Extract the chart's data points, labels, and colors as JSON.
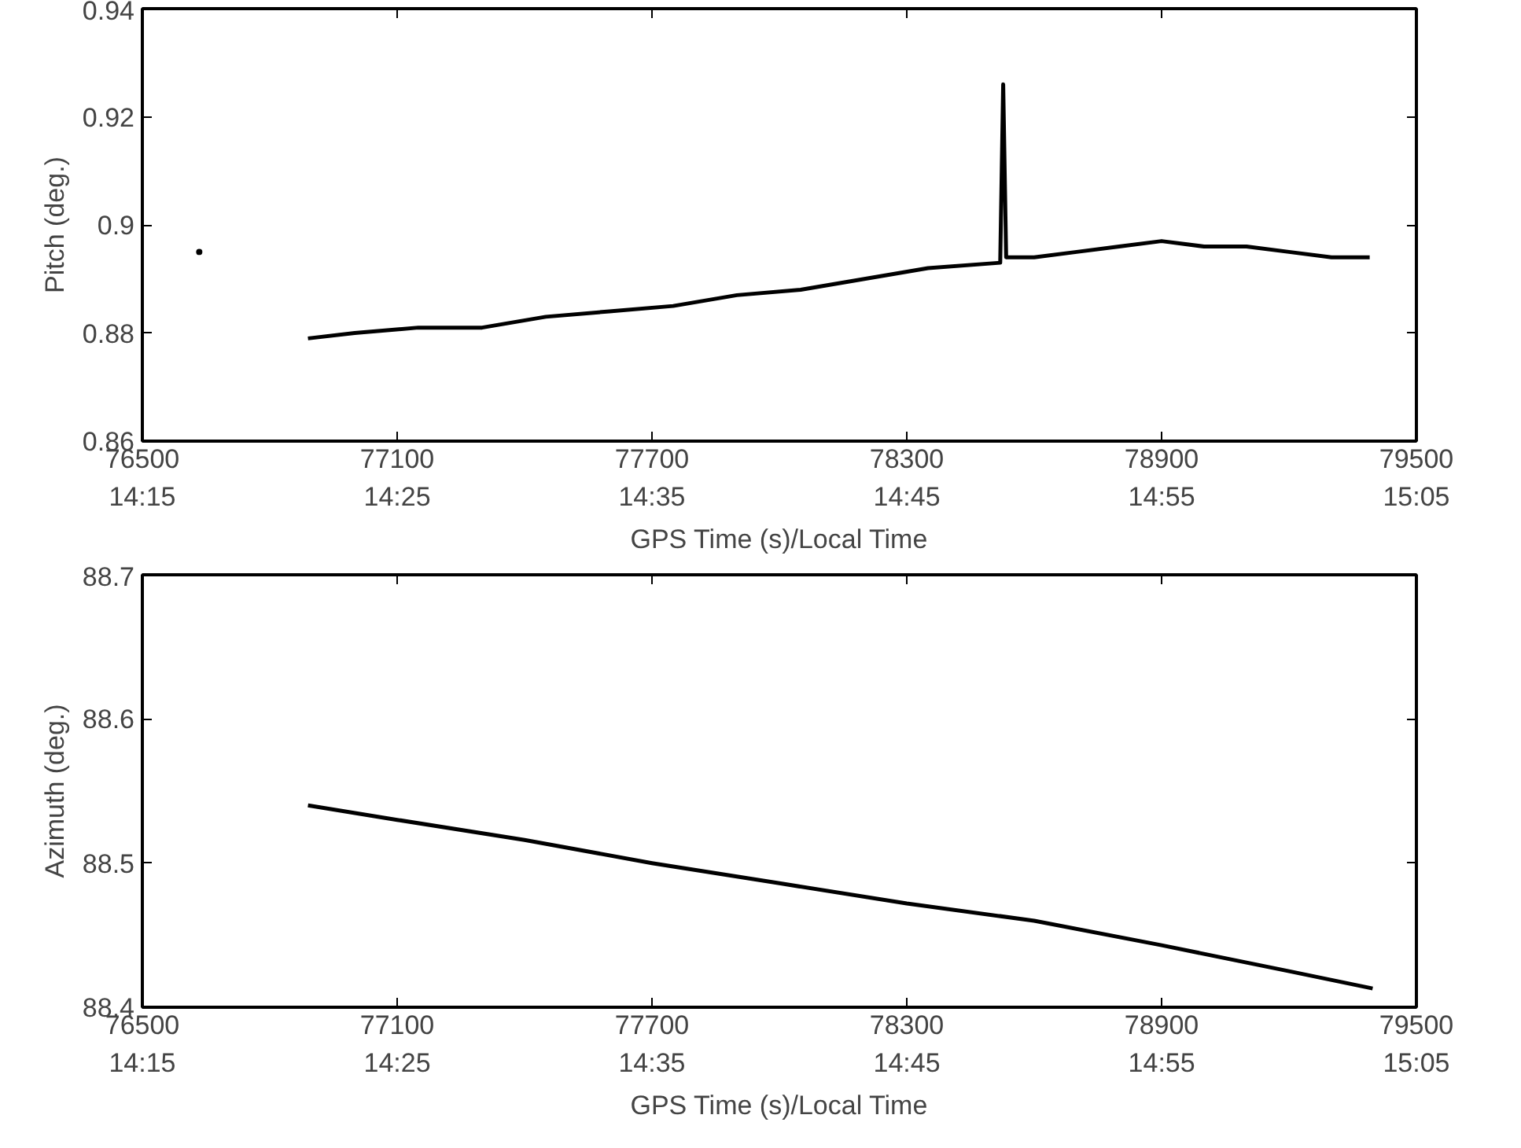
{
  "chart_data": [
    {
      "type": "line",
      "ylabel": "Pitch (deg.)",
      "xlabel": "GPS Time (s)/Local Time",
      "xlim": [
        76500,
        79500
      ],
      "ylim": [
        0.86,
        0.94
      ],
      "xticks": [
        76500,
        77100,
        77700,
        78300,
        78900,
        79500
      ],
      "x2lim": [
        14.25,
        15.0833
      ],
      "x2ticks": [
        {
          "value": 14.25,
          "label": "14:15"
        },
        {
          "value": 14.4167,
          "label": "14:25"
        },
        {
          "value": 14.5833,
          "label": "14:35"
        },
        {
          "value": 14.75,
          "label": "14:45"
        },
        {
          "value": 14.9167,
          "label": "14:55"
        },
        {
          "value": 15.0833,
          "label": "15:05"
        }
      ],
      "yticks": [
        0.86,
        0.88,
        {
          "value": 0.9,
          "label": "0.9"
        },
        0.92,
        0.94
      ],
      "grid": false,
      "marker": "none",
      "series": [
        {
          "color": "#000000",
          "x": [
            76890,
            77000,
            77150,
            77300,
            77450,
            77600,
            77750,
            77900,
            78050,
            78200,
            78350,
            78520,
            78527,
            78534,
            78600,
            78700,
            78800,
            78900,
            79000,
            79100,
            79200,
            79300,
            79390
          ],
          "values": [
            0.879,
            0.88,
            0.881,
            0.881,
            0.883,
            0.884,
            0.885,
            0.887,
            0.888,
            0.89,
            0.892,
            0.893,
            0.926,
            0.894,
            0.894,
            0.895,
            0.896,
            0.897,
            0.896,
            0.896,
            0.895,
            0.894,
            0.894
          ]
        },
        {
          "type": "scatter",
          "color": "#000000",
          "x": [
            76634
          ],
          "values": [
            0.895
          ]
        }
      ]
    },
    {
      "type": "line",
      "ylabel": "Azimuth (deg.)",
      "xlabel": "GPS Time (s)/Local Time",
      "xlim": [
        76500,
        79500
      ],
      "ylim": [
        88.4,
        88.7
      ],
      "xticks": [
        76500,
        77100,
        77700,
        78300,
        78900,
        79500
      ],
      "x2lim": [
        14.25,
        15.0833
      ],
      "x2ticks": [
        {
          "value": 14.25,
          "label": "14:15"
        },
        {
          "value": 14.4167,
          "label": "14:25"
        },
        {
          "value": 14.5833,
          "label": "14:35"
        },
        {
          "value": 14.75,
          "label": "14:45"
        },
        {
          "value": 14.9167,
          "label": "14:55"
        },
        {
          "value": 15.0833,
          "label": "15:05"
        }
      ],
      "yticks": [
        88.4,
        88.5,
        88.6,
        88.7
      ],
      "grid": false,
      "marker": "none",
      "series": [
        {
          "color": "#000000",
          "x": [
            76890,
            77100,
            77400,
            77700,
            78000,
            78300,
            78600,
            78900,
            79200,
            79397
          ],
          "values": [
            88.54,
            88.53,
            88.516,
            88.5,
            88.486,
            88.472,
            88.46,
            88.443,
            88.425,
            88.413
          ]
        }
      ]
    }
  ]
}
